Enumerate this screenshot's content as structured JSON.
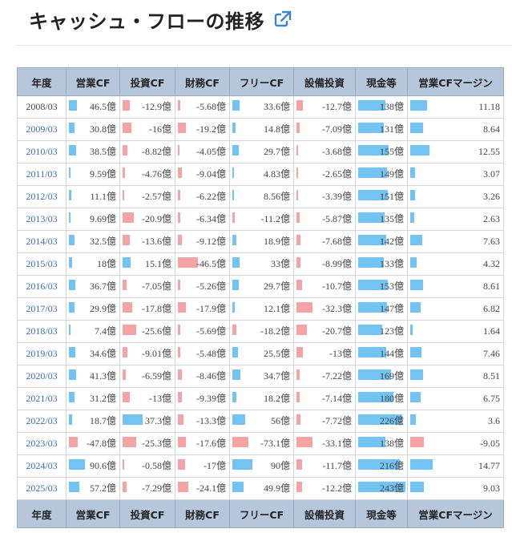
{
  "title": "キャッシュ・フローの推移",
  "icons": {
    "external_link": "external-link-icon"
  },
  "colors": {
    "positive": "#71c4f3",
    "negative": "#f5a3a3",
    "header_bg": "#b6c7dc",
    "year_link": "#3a6fb0"
  },
  "columns": [
    "年度",
    "営業CF",
    "投資CF",
    "財務CF",
    "フリーCF",
    "設備投資",
    "現金等",
    "営業CFマージン"
  ],
  "rows": [
    {
      "year": "2008/03",
      "op": "46.5億",
      "inv": "-12.9億",
      "fin": "-5.68億",
      "free": "33.6億",
      "capex": "-12.7億",
      "cash": "138億",
      "margin": "11.18"
    },
    {
      "year": "2009/03",
      "op": "30.8億",
      "inv": "-16億",
      "fin": "-19.2億",
      "free": "14.8億",
      "capex": "-7.09億",
      "cash": "131億",
      "margin": "8.64"
    },
    {
      "year": "2010/03",
      "op": "38.5億",
      "inv": "-8.82億",
      "fin": "-4.05億",
      "free": "29.7億",
      "capex": "-3.68億",
      "cash": "155億",
      "margin": "12.55"
    },
    {
      "year": "2011/03",
      "op": "9.59億",
      "inv": "-4.76億",
      "fin": "-9.04億",
      "free": "4.83億",
      "capex": "-2.65億",
      "cash": "149億",
      "margin": "3.07"
    },
    {
      "year": "2012/03",
      "op": "11.1億",
      "inv": "-2.57億",
      "fin": "-6.22億",
      "free": "8.56億",
      "capex": "-3.39億",
      "cash": "151億",
      "margin": "3.26"
    },
    {
      "year": "2013/03",
      "op": "9.69億",
      "inv": "-20.9億",
      "fin": "-6.34億",
      "free": "-11.2億",
      "capex": "-5.87億",
      "cash": "135億",
      "margin": "2.63"
    },
    {
      "year": "2014/03",
      "op": "32.5億",
      "inv": "-13.6億",
      "fin": "-9.12億",
      "free": "18.9億",
      "capex": "-7.68億",
      "cash": "142億",
      "margin": "7.63"
    },
    {
      "year": "2015/03",
      "op": "18億",
      "inv": "15.1億",
      "fin": "-46.5億",
      "free": "33億",
      "capex": "-8.99億",
      "cash": "133億",
      "margin": "4.32"
    },
    {
      "year": "2016/03",
      "op": "36.7億",
      "inv": "-7.05億",
      "fin": "-5.26億",
      "free": "29.7億",
      "capex": "-10.7億",
      "cash": "153億",
      "margin": "8.61"
    },
    {
      "year": "2017/03",
      "op": "29.9億",
      "inv": "-17.8億",
      "fin": "-17.9億",
      "free": "12.1億",
      "capex": "-32.3億",
      "cash": "147億",
      "margin": "6.82"
    },
    {
      "year": "2018/03",
      "op": "7.4億",
      "inv": "-25.6億",
      "fin": "-5.69億",
      "free": "-18.2億",
      "capex": "-20.7億",
      "cash": "123億",
      "margin": "1.64"
    },
    {
      "year": "2019/03",
      "op": "34.6億",
      "inv": "-9.01億",
      "fin": "-5.48億",
      "free": "25.5億",
      "capex": "-13億",
      "cash": "144億",
      "margin": "7.46"
    },
    {
      "year": "2020/03",
      "op": "41.3億",
      "inv": "-6.59億",
      "fin": "-8.46億",
      "free": "34.7億",
      "capex": "-7.22億",
      "cash": "169億",
      "margin": "8.51"
    },
    {
      "year": "2021/03",
      "op": "31.2億",
      "inv": "-13億",
      "fin": "-9.39億",
      "free": "18.2億",
      "capex": "-7.14億",
      "cash": "180億",
      "margin": "6.75"
    },
    {
      "year": "2022/03",
      "op": "18.7億",
      "inv": "37.3億",
      "fin": "-13.3億",
      "free": "56億",
      "capex": "-7.72億",
      "cash": "226億",
      "margin": "3.6"
    },
    {
      "year": "2023/03",
      "op": "-47.8億",
      "inv": "-25.3億",
      "fin": "-17.6億",
      "free": "-73.1億",
      "capex": "-33.1億",
      "cash": "138億",
      "margin": "-9.05"
    },
    {
      "year": "2024/03",
      "op": "90.6億",
      "inv": "-0.58億",
      "fin": "-17億",
      "free": "90億",
      "capex": "-11.7億",
      "cash": "216億",
      "margin": "14.77"
    },
    {
      "year": "2025/03",
      "op": "57.2億",
      "inv": "-7.29億",
      "fin": "-24.1億",
      "free": "49.9億",
      "capex": "-12.2億",
      "cash": "243億",
      "margin": "9.03"
    }
  ]
}
